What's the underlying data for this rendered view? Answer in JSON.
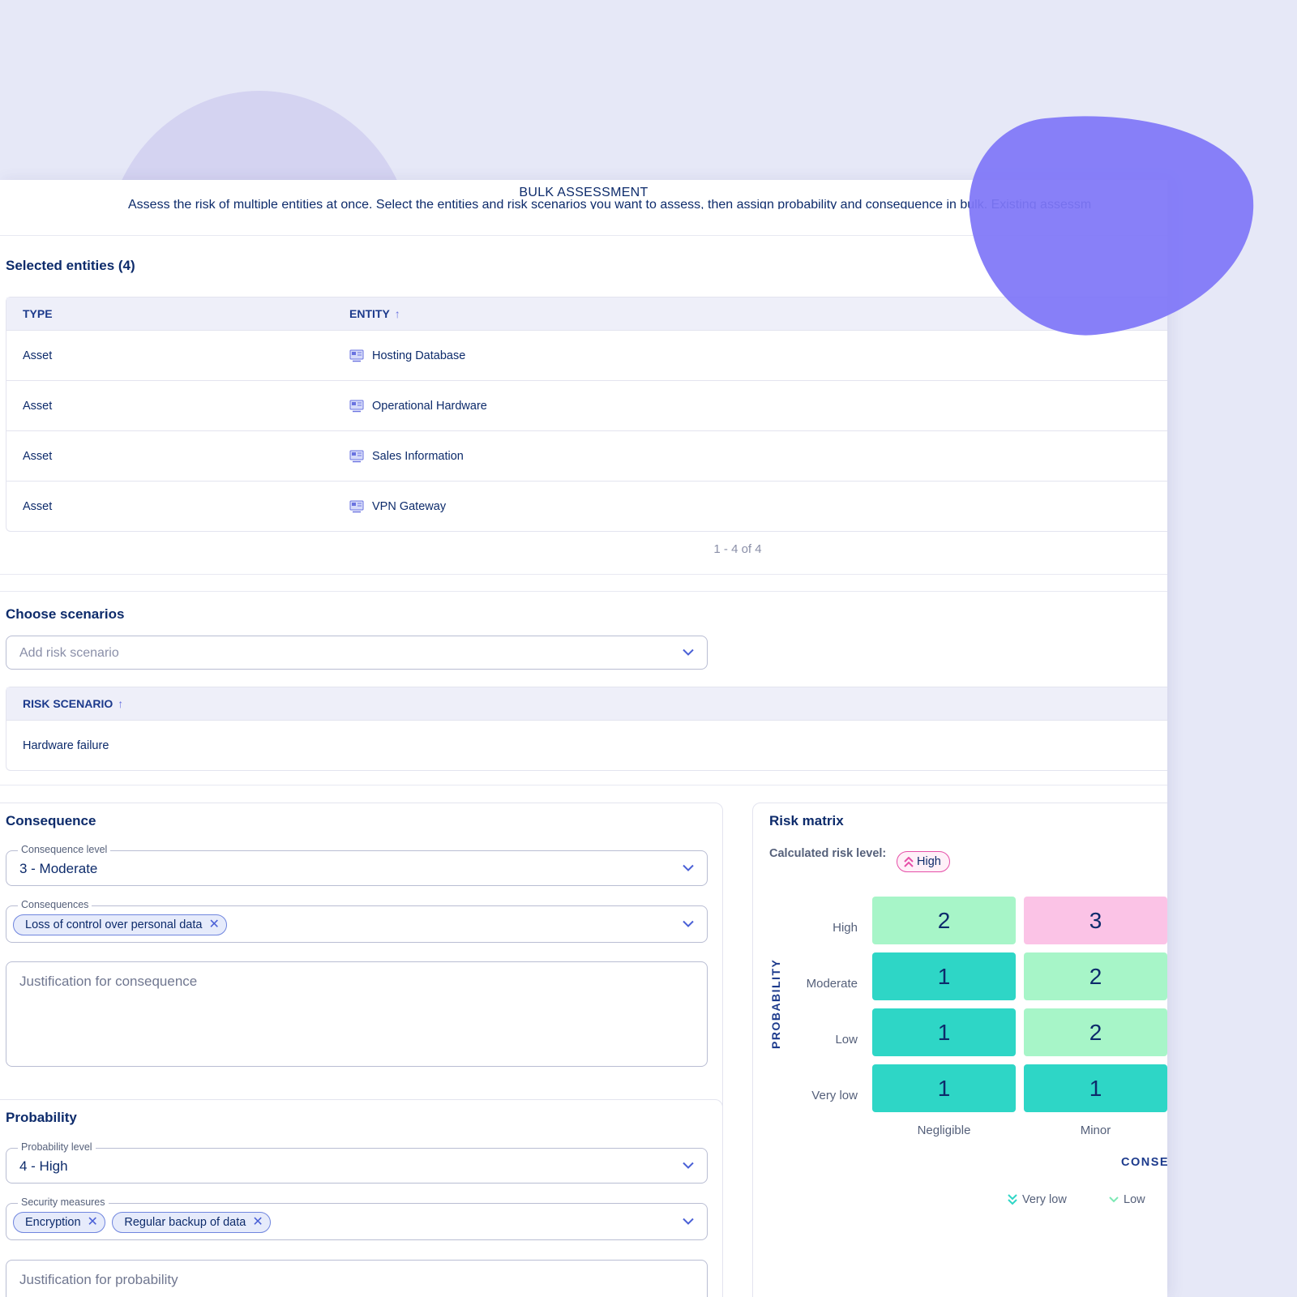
{
  "modal": {
    "title": "BULK ASSESSMENT",
    "description": "Assess the risk of multiple entities at once. Select the entities and risk scenarios you want to assess, then assign probability and consequence in bulk. Existing assessm"
  },
  "entities": {
    "section_title": "Selected entities (4)",
    "columns": [
      "TYPE",
      "ENTITY"
    ],
    "rows": [
      {
        "type": "Asset",
        "entity": "Hosting Database"
      },
      {
        "type": "Asset",
        "entity": "Operational Hardware"
      },
      {
        "type": "Asset",
        "entity": "Sales Information"
      },
      {
        "type": "Asset",
        "entity": "VPN Gateway"
      }
    ],
    "pagination": "1 - 4 of 4"
  },
  "scenarios": {
    "section_title": "Choose scenarios",
    "select_placeholder": "Add risk scenario",
    "column": "RISK SCENARIO",
    "rows": [
      "Hardware failure"
    ]
  },
  "consequence": {
    "section_title": "Consequence",
    "level_label": "Consequence level",
    "level_value": "3 - Moderate",
    "consequences_label": "Consequences",
    "chips": [
      "Loss of control over personal data"
    ],
    "justification_placeholder": "Justification for consequence"
  },
  "probability": {
    "section_title": "Probability",
    "level_label": "Probability level",
    "level_value": "4 - High",
    "measures_label": "Security measures",
    "chips": [
      "Encryption",
      "Regular backup of data"
    ],
    "justification_placeholder": "Justification for probability"
  },
  "risk_matrix": {
    "title": "Risk matrix",
    "calculated_label": "Calculated risk level:",
    "calculated_value": "High",
    "probability_axis": "PROBABILITY",
    "consequence_axis": "CONSE",
    "row_labels": [
      "High",
      "Moderate",
      "Low",
      "Very low"
    ],
    "column_labels": [
      "Negligible",
      "Minor"
    ],
    "cells": [
      [
        {
          "value": "2",
          "color": "#a7f5c8"
        },
        {
          "value": "3",
          "color": "#fbc3e6"
        }
      ],
      [
        {
          "value": "1",
          "color": "#2ed6c6"
        },
        {
          "value": "2",
          "color": "#a7f5c8"
        }
      ],
      [
        {
          "value": "1",
          "color": "#2ed6c6"
        },
        {
          "value": "2",
          "color": "#a7f5c8"
        }
      ],
      [
        {
          "value": "1",
          "color": "#2ed6c6"
        },
        {
          "value": "1",
          "color": "#2ed6c6"
        }
      ]
    ],
    "legend": [
      "Very low",
      "Low"
    ]
  },
  "colors": {
    "primary_text": "#0d2b6b",
    "accent": "#6a73e0",
    "high_badge": "#e64fa8"
  }
}
